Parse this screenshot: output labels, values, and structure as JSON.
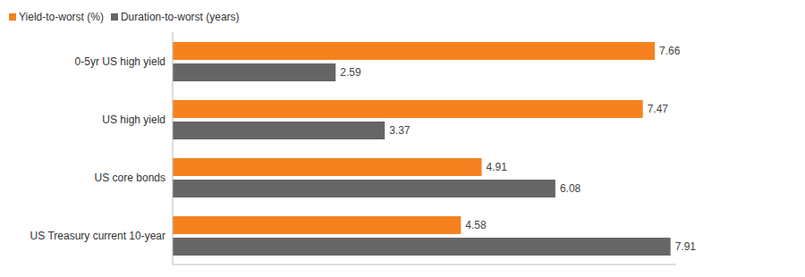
{
  "chart_data": {
    "type": "bar",
    "orientation": "horizontal",
    "categories": [
      "0-5yr US high yield",
      "US high yield",
      "US core bonds",
      "US Treasury current 10-year"
    ],
    "series": [
      {
        "name": "Yield-to-worst (%)",
        "color": "#f5821f",
        "values": [
          7.66,
          7.47,
          4.91,
          4.58
        ]
      },
      {
        "name": "Duration-to-worst (years)",
        "color": "#666666",
        "values": [
          2.59,
          3.37,
          6.08,
          7.91
        ]
      }
    ],
    "xlim": [
      0,
      8
    ],
    "tick_labels": false,
    "data_labels": true,
    "legend": "top-left"
  }
}
